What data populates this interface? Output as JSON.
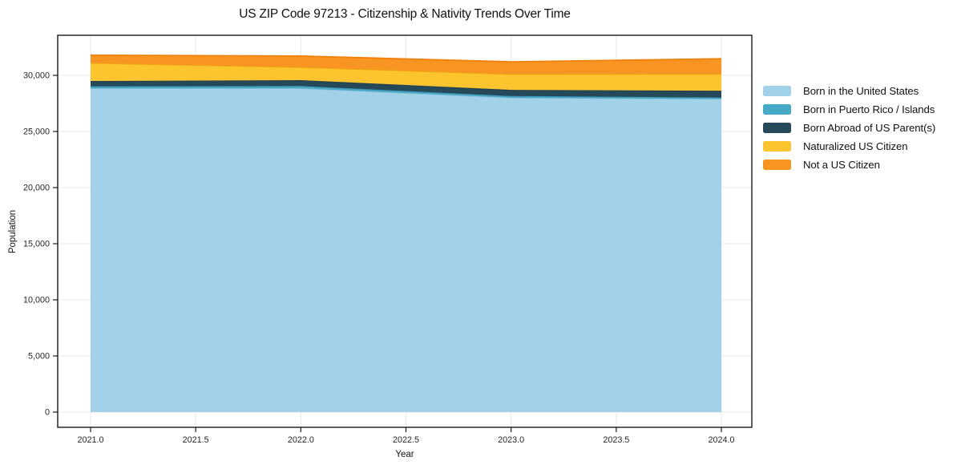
{
  "chart_data": {
    "type": "area",
    "stacked": true,
    "title": "US ZIP Code 97213 - Citizenship & Nativity Trends Over Time",
    "xlabel": "Year",
    "ylabel": "Population",
    "x": [
      2021.0,
      2022.0,
      2023.0,
      2024.0
    ],
    "series": [
      {
        "name": "Born in the United States",
        "color": "#a2d2e9",
        "edge_color": "#8fc2dd",
        "values": [
          28850,
          28850,
          28000,
          27900
        ]
      },
      {
        "name": "Born in Puerto Rico / Islands",
        "color": "#46a9c5",
        "edge_color": "#3e97b5",
        "values": [
          180,
          200,
          160,
          130
        ]
      },
      {
        "name": "Born Abroad of US Parent(s)",
        "color": "#26495a",
        "edge_color": "#203f4f",
        "values": [
          470,
          520,
          550,
          600
        ]
      },
      {
        "name": "Naturalized US Citizen",
        "color": "#fcc42e",
        "edge_color": "#edaa12",
        "values": [
          1600,
          1150,
          1400,
          1500
        ]
      },
      {
        "name": "Not a US Citizen",
        "color": "#f89522",
        "edge_color": "#ef820d",
        "values": [
          700,
          1000,
          1100,
          1350
        ]
      }
    ],
    "totals": [
      31800,
      31720,
      31210,
      31480
    ],
    "xticks": {
      "values": [
        2021.0,
        2021.5,
        2022.0,
        2022.5,
        2023.0,
        2023.5,
        2024.0
      ],
      "labels": [
        "2021.0",
        "2021.5",
        "2022.0",
        "2022.5",
        "2023.0",
        "2023.5",
        "2024.0"
      ]
    },
    "yticks": {
      "values": [
        0,
        5000,
        10000,
        15000,
        20000,
        25000,
        30000
      ],
      "labels": [
        "0",
        "5,000",
        "10,000",
        "15,000",
        "20,000",
        "25,000",
        "30,000"
      ]
    },
    "xlim": [
      2020.84,
      2024.15
    ],
    "ylim": [
      -1360,
      33570
    ],
    "grid": true,
    "grid_color": "#e9e9e9",
    "legend_position": "right-outside",
    "legend_frame": false
  },
  "colors": {
    "background": "#ffffff",
    "spine": "#1a1a1a",
    "tick": "#1a1a1a",
    "tick_label": "#262626",
    "text": "#111111"
  }
}
